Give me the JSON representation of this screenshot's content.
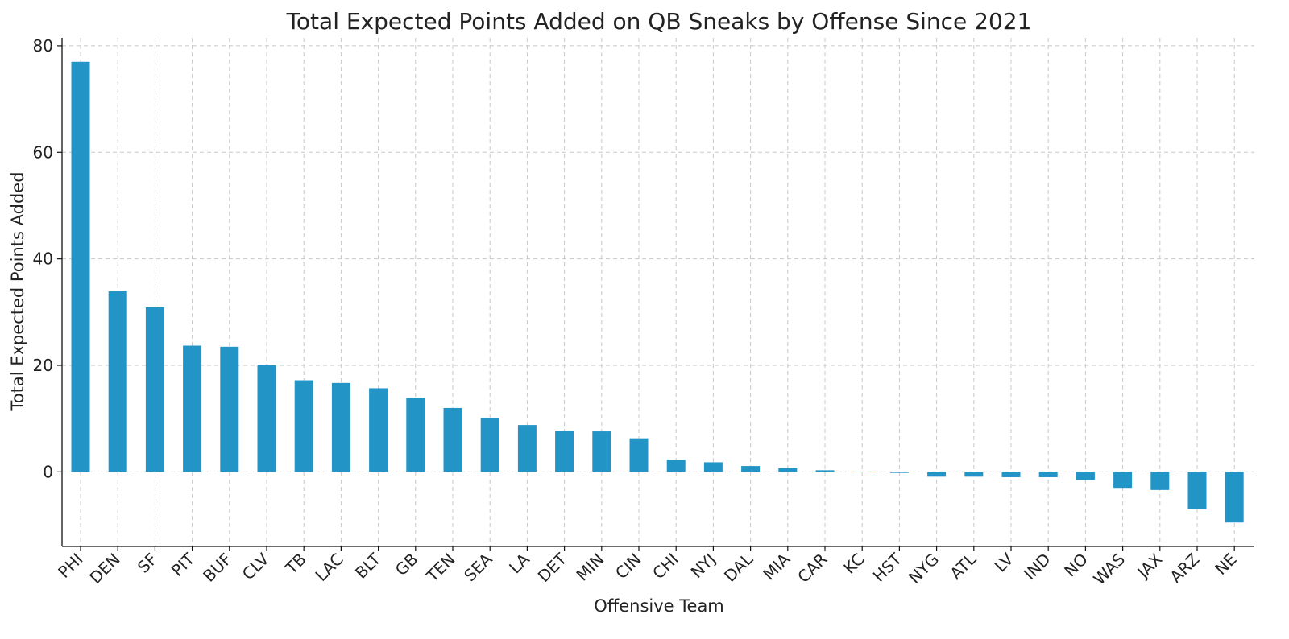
{
  "chart_data": {
    "type": "bar",
    "title": "Total Expected Points Added on QB Sneaks by Offense Since 2021",
    "xlabel": "Offensive Team",
    "ylabel": "Total Expected Points Added",
    "categories": [
      "PHI",
      "DEN",
      "SF",
      "PIT",
      "BUF",
      "CLV",
      "TB",
      "LAC",
      "BLT",
      "GB",
      "TEN",
      "SEA",
      "LA",
      "DET",
      "MIN",
      "CIN",
      "CHI",
      "NYJ",
      "DAL",
      "MIA",
      "CAR",
      "KC",
      "HST",
      "NYG",
      "ATL",
      "LV",
      "IND",
      "NO",
      "WAS",
      "JAX",
      "ARZ",
      "NE"
    ],
    "values": [
      77.0,
      33.9,
      30.9,
      23.7,
      23.5,
      20.0,
      17.2,
      16.7,
      15.7,
      13.9,
      12.0,
      10.1,
      8.8,
      7.7,
      7.6,
      6.3,
      2.3,
      1.8,
      1.1,
      0.7,
      0.3,
      -0.1,
      -0.2,
      -0.9,
      -0.9,
      -1.0,
      -1.0,
      -1.5,
      -3.0,
      -3.4,
      -7.0,
      -9.5
    ],
    "ylim": [
      -14,
      81.5
    ],
    "yticks": [
      0,
      20,
      40,
      60,
      80
    ],
    "grid": true,
    "bar_color": "#2394c6"
  }
}
